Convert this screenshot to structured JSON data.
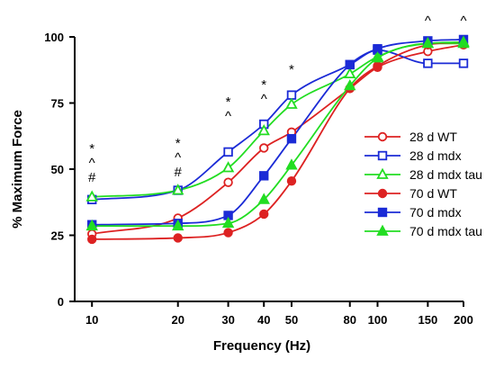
{
  "chart_data": {
    "type": "scatter",
    "xlabel": "Frequency (Hz)",
    "ylabel": "% Maximum Force",
    "x_scale": "log",
    "xlim": [
      8.7,
      200
    ],
    "ylim": [
      0,
      100
    ],
    "x_ticks": [
      10,
      20,
      30,
      40,
      50,
      80,
      100,
      150,
      200
    ],
    "x_tick_labels": [
      "10",
      "20",
      "30",
      "40",
      "50",
      "80",
      "100",
      "150",
      "200"
    ],
    "y_ticks": [
      0,
      25,
      50,
      75,
      100
    ],
    "y_tick_labels": [
      "0",
      "25",
      "50",
      "75",
      "100"
    ],
    "grid": false,
    "legend_position": "right",
    "x": [
      10,
      20,
      30,
      40,
      50,
      80,
      100,
      150,
      200
    ],
    "series": [
      {
        "name": "28 d WT",
        "color": "#dd2222",
        "marker": "circle-open",
        "values": [
          25.5,
          31.5,
          45,
          58,
          64,
          80.5,
          88.5,
          94.5,
          97
        ]
      },
      {
        "name": "28 d mdx",
        "color": "#1b2bd6",
        "marker": "square-open",
        "values": [
          38.5,
          42,
          56.5,
          67,
          78,
          89.5,
          95,
          90,
          90
        ]
      },
      {
        "name": "28 d mdx tau",
        "color": "#22dd22",
        "marker": "triangle-open",
        "values": [
          39.5,
          42,
          50.5,
          64.5,
          74.5,
          86,
          92.5,
          97.5,
          97.5
        ]
      },
      {
        "name": "70 d WT",
        "color": "#dd2222",
        "marker": "circle-filled",
        "values": [
          23.5,
          24,
          26,
          33,
          45.5,
          80.5,
          89,
          97,
          98
        ]
      },
      {
        "name": "70 d mdx",
        "color": "#1b2bd6",
        "marker": "square-filled",
        "values": [
          29,
          29.5,
          32.5,
          47.5,
          61.5,
          89.5,
          95.5,
          98.5,
          99
        ]
      },
      {
        "name": "70 d mdx tau",
        "color": "#22dd22",
        "marker": "triangle-filled",
        "values": [
          28.5,
          28.5,
          29.5,
          38.5,
          51.5,
          81.5,
          92,
          97.5,
          98
        ]
      }
    ],
    "annotations": [
      {
        "x": 10,
        "lines": [
          "*",
          "^",
          "#"
        ]
      },
      {
        "x": 20,
        "lines": [
          "*",
          "^",
          "#"
        ]
      },
      {
        "x": 30,
        "lines": [
          "*",
          "^"
        ]
      },
      {
        "x": 40,
        "lines": [
          "*",
          "^"
        ]
      },
      {
        "x": 50,
        "lines": [
          "*"
        ]
      },
      {
        "x": 150,
        "lines": [
          "^"
        ]
      },
      {
        "x": 200,
        "lines": [
          "^"
        ]
      }
    ]
  }
}
